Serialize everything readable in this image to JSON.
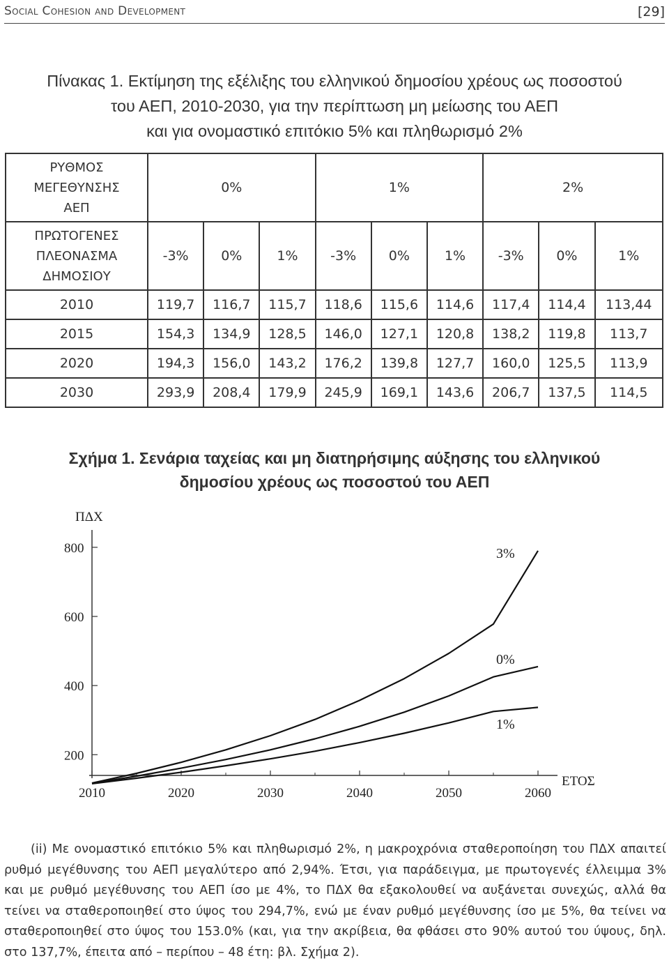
{
  "header": {
    "left": "Social Cohesion and Development",
    "page": "[29]"
  },
  "table": {
    "title_lines": [
      "Πίνακας 1. Εκτίμηση της εξέλιξης του ελληνικού δημοσίου χρέους ως ποσοστού",
      "του ΑΕΠ, 2010-2030, για την περίπτωση μη μείωσης του ΑΕΠ",
      "και για ονομαστικό επιτόκιο 5% και πληθωρισμό 2%"
    ],
    "growth_header": [
      "ΡΥΘΜΟΣ",
      "ΜΕΓΕΘΥΝΣΗΣ",
      "ΑΕΠ"
    ],
    "growth_values": [
      "0%",
      "1%",
      "2%"
    ],
    "surplus_header": [
      "ΠΡΩΤΟΓΕΝΕΣ",
      "ΠΛΕΟΝΑΣΜΑ",
      "ΔΗΜΟΣΙΟΥ"
    ],
    "surplus_values": [
      "-3%",
      "0%",
      "1%",
      "-3%",
      "0%",
      "1%",
      "-3%",
      "0%",
      "1%"
    ],
    "rows": [
      {
        "year": "2010",
        "values": [
          "119,7",
          "116,7",
          "115,7",
          "118,6",
          "115,6",
          "114,6",
          "117,4",
          "114,4",
          "113,44"
        ]
      },
      {
        "year": "2015",
        "values": [
          "154,3",
          "134,9",
          "128,5",
          "146,0",
          "127,1",
          "120,8",
          "138,2",
          "119,8",
          "113,7"
        ]
      },
      {
        "year": "2020",
        "values": [
          "194,3",
          "156,0",
          "143,2",
          "176,2",
          "139,8",
          "127,7",
          "160,0",
          "125,5",
          "113,9"
        ]
      },
      {
        "year": "2030",
        "values": [
          "293,9",
          "208,4",
          "179,9",
          "245,9",
          "169,1",
          "143,6",
          "206,7",
          "137,5",
          "114,5"
        ]
      }
    ]
  },
  "figure": {
    "title_lines": [
      "Σχήμα 1. Σενάρια ταχείας και μη διατηρήσιμης αύξησης του ελληνικού",
      "δημοσίου χρέους ως ποσοστού του ΑΕΠ"
    ]
  },
  "chart_data": {
    "type": "line",
    "ylabel": "ΠΔΧ",
    "xlabel": "ΕΤΟΣ",
    "x_ticks": [
      2010,
      2020,
      2030,
      2040,
      2050,
      2060
    ],
    "y_ticks": [
      200,
      400,
      600,
      800
    ],
    "xlim": [
      2010,
      2060
    ],
    "ylim": [
      140,
      830
    ],
    "series": [
      {
        "name": "3%",
        "x": [
          2010,
          2015,
          2020,
          2025,
          2030,
          2035,
          2040,
          2045,
          2050,
          2055,
          2060
        ],
        "values": [
          118,
          146,
          178,
          214,
          255,
          302,
          357,
          420,
          493,
          578,
          790
        ]
      },
      {
        "name": "0%",
        "x": [
          2010,
          2015,
          2020,
          2025,
          2030,
          2035,
          2040,
          2045,
          2050,
          2055,
          2060
        ],
        "values": [
          117,
          138,
          161,
          186,
          214,
          246,
          282,
          323,
          370,
          425,
          455
        ]
      },
      {
        "name": "1%",
        "x": [
          2010,
          2015,
          2020,
          2025,
          2030,
          2035,
          2040,
          2045,
          2050,
          2055,
          2060
        ],
        "values": [
          116,
          132,
          149,
          168,
          188,
          210,
          235,
          262,
          292,
          325,
          337
        ]
      }
    ],
    "grid": false
  },
  "body": {
    "paragraph": "(ii) Με ονομαστικό επιτόκιο 5% και πληθωρισμό 2%, η μακροχρόνια σταθεροποίηση του ΠΔΧ απαιτεί ρυθμό μεγέθυνσης του ΑΕΠ μεγαλύτερο από 2,94%. Έτσι, για παράδειγμα, με πρωτογενές έλλειμμα 3% και με ρυθμό μεγέθυνσης του ΑΕΠ ίσο με 4%, το ΠΔΧ θα εξακολουθεί να αυξάνεται συνεχώς, αλλά θα τείνει να σταθεροποιηθεί στο ύψος του 294,7%, ενώ με έναν ρυθμό μεγέθυνσης ίσο με 5%, θα τείνει να σταθεροποιηθεί στο ύψος του 153.0% (και, για την ακρίβεια, θα φθάσει στο 90% αυτού του ύψους, δηλ. στο 137,7%, έπειτα από – περίπου – 48 έτη: βλ. Σχήμα 2)."
  }
}
